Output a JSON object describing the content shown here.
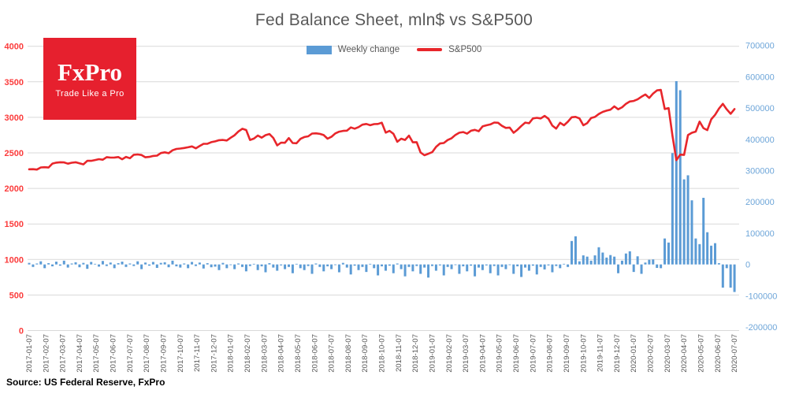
{
  "logo": {
    "title": "FxPro",
    "tagline": "Trade Like a Pro"
  },
  "source": {
    "text": "Source: US Federal Reserve, FxPro"
  },
  "colors": {
    "bar": "#5b9bd5",
    "line": "#e8262b",
    "left_axis_text": "#fb3b3b",
    "right_axis_text": "#6ea6d9",
    "grid": "#d9d9d9",
    "title_text": "#595959",
    "x_axis_text": "#595959",
    "logo_bg": "#e6202e",
    "source_text": "#000000"
  },
  "chart_data": {
    "type": "combo",
    "title": "Fed Balance Sheet, mln$ vs S&P500",
    "legend_position": "top-center",
    "grid": "horizontal-only",
    "x_axis": {
      "start_date": "2017-01-07",
      "interval_days": 7,
      "points": 183,
      "tick_labels": [
        "2017-01-07",
        "2017-02-07",
        "2017-03-07",
        "2017-04-07",
        "2017-05-07",
        "2017-06-07",
        "2017-07-07",
        "2017-08-07",
        "2017-09-07",
        "2017-10-07",
        "2017-11-07",
        "2017-12-07",
        "2018-01-07",
        "2018-02-07",
        "2018-03-07",
        "2018-04-07",
        "2018-05-07",
        "2018-06-07",
        "2018-07-07",
        "2018-08-07",
        "2018-09-07",
        "2018-10-07",
        "2018-11-07",
        "2018-12-07",
        "2019-01-07",
        "2019-02-07",
        "2019-03-07",
        "2019-04-07",
        "2019-05-07",
        "2019-06-07",
        "2019-07-07",
        "2019-08-07",
        "2019-09-07",
        "2019-10-07",
        "2019-11-07",
        "2019-12-07",
        "2020-01-07",
        "2020-02-07",
        "2020-03-07",
        "2020-04-07",
        "2020-05-07",
        "2020-06-07",
        "2020-07-07"
      ]
    },
    "left_axis": {
      "min": 0,
      "max": 4000,
      "step": 500,
      "series": "S&P500"
    },
    "right_axis": {
      "min": -200000,
      "max": 700000,
      "step": 100000,
      "series": "Weekly change"
    },
    "series": [
      {
        "name": "Weekly change",
        "type": "bar",
        "axis": "right",
        "values": [
          5000,
          -8000,
          3000,
          10000,
          -12000,
          4000,
          -6000,
          9000,
          -4000,
          12000,
          -10000,
          3000,
          7000,
          -9000,
          5000,
          -14000,
          8000,
          2000,
          -7000,
          11000,
          -5000,
          6000,
          -12000,
          4000,
          9000,
          -8000,
          3000,
          -5000,
          10000,
          -15000,
          6000,
          -4000,
          8000,
          -11000,
          5000,
          7000,
          -9000,
          12000,
          -6000,
          -10000,
          3000,
          -12000,
          8000,
          -5000,
          6000,
          -13000,
          4000,
          -9000,
          -7000,
          -18000,
          5000,
          -12000,
          -2000,
          -15000,
          3000,
          -8000,
          -22000,
          -5000,
          2000,
          -18000,
          -6000,
          -25000,
          4000,
          -10000,
          -20000,
          -3000,
          -15000,
          -8000,
          -28000,
          2000,
          -12000,
          -18000,
          -5000,
          -30000,
          3000,
          -8000,
          -22000,
          -6000,
          -15000,
          -2000,
          -25000,
          5000,
          -10000,
          -32000,
          -4000,
          -18000,
          -8000,
          -24000,
          2000,
          -12000,
          -35000,
          -6000,
          -20000,
          -4000,
          -28000,
          3000,
          -15000,
          -38000,
          -8000,
          -22000,
          -5000,
          -30000,
          -10000,
          -42000,
          -5000,
          -20000,
          -3000,
          -35000,
          -8000,
          -15000,
          -2000,
          -30000,
          -6000,
          -22000,
          -4000,
          -38000,
          -10000,
          -18000,
          -3000,
          -28000,
          -5000,
          -35000,
          -8000,
          -15000,
          -2000,
          -30000,
          -6000,
          -40000,
          -10000,
          -20000,
          -4000,
          -32000,
          -8000,
          -16000,
          -3000,
          -25000,
          -5000,
          -12000,
          2000,
          -8000,
          75000,
          90000,
          10000,
          29000,
          25000,
          12000,
          29000,
          55000,
          38000,
          22000,
          30000,
          25000,
          -28000,
          12000,
          35000,
          42000,
          -24000,
          26000,
          -30000,
          6000,
          15000,
          16000,
          -11000,
          -12000,
          83000,
          70000,
          356000,
          586000,
          557000,
          272000,
          285000,
          205000,
          83000,
          65000,
          213000,
          103000,
          60000,
          68000,
          4000,
          -74000,
          -12000,
          -74000,
          -88000
        ]
      },
      {
        "name": "S&P500",
        "type": "line",
        "axis": "left",
        "values": [
          2269,
          2271,
          2265,
          2295,
          2298,
          2294,
          2349,
          2362,
          2368,
          2366,
          2348,
          2361,
          2368,
          2353,
          2338,
          2388,
          2388,
          2399,
          2411,
          2404,
          2440,
          2433,
          2435,
          2441,
          2410,
          2443,
          2425,
          2473,
          2478,
          2470,
          2438,
          2444,
          2457,
          2461,
          2498,
          2508,
          2496,
          2537,
          2555,
          2561,
          2569,
          2579,
          2591,
          2564,
          2597,
          2627,
          2629,
          2651,
          2662,
          2679,
          2682,
          2674,
          2713,
          2748,
          2802,
          2839,
          2822,
          2682,
          2701,
          2744,
          2714,
          2749,
          2765,
          2711,
          2605,
          2644,
          2642,
          2708,
          2639,
          2635,
          2697,
          2723,
          2733,
          2772,
          2775,
          2767,
          2750,
          2700,
          2726,
          2774,
          2798,
          2809,
          2813,
          2858,
          2840,
          2862,
          2897,
          2907,
          2889,
          2905,
          2907,
          2925,
          2785,
          2809,
          2768,
          2656,
          2700,
          2682,
          2743,
          2649,
          2651,
          2506,
          2467,
          2488,
          2510,
          2584,
          2632,
          2639,
          2681,
          2706,
          2753,
          2784,
          2793,
          2771,
          2811,
          2824,
          2805,
          2873,
          2888,
          2900,
          2927,
          2924,
          2880,
          2851,
          2856,
          2783,
          2826,
          2879,
          2926,
          2917,
          2984,
          2993,
          2984,
          3020,
          2980,
          2884,
          2841,
          2924,
          2888,
          2938,
          3001,
          3007,
          2985,
          2888,
          2919,
          2990,
          3005,
          3047,
          3077,
          3094,
          3108,
          3154,
          3113,
          3142,
          3191,
          3223,
          3231,
          3253,
          3289,
          3322,
          3273,
          3335,
          3379,
          3386,
          3116,
          3130,
          2741,
          2398,
          2476,
          2471,
          2750,
          2783,
          2799,
          2940,
          2848,
          2820,
          2972,
          3036,
          3123,
          3190,
          3113,
          3050,
          3116
        ]
      }
    ]
  }
}
